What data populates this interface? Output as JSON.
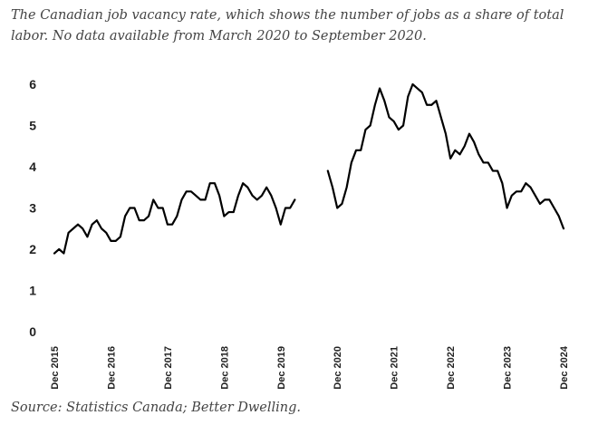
{
  "subtitle": "The Canadian job vacancy rate, which shows the number of jobs as a share of total labor. No data available from March 2020 to September 2020.",
  "source": "Source: Statistics Canada; Better Dwelling.",
  "chart_data": {
    "type": "line",
    "title": "",
    "xlabel": "",
    "ylabel": "",
    "ylim": [
      0,
      6
    ],
    "y_ticks": [
      "0",
      "1",
      "2",
      "3",
      "4",
      "5",
      "6"
    ],
    "x_ticks": [
      "Dec 2015",
      "Dec 2016",
      "Dec 2017",
      "Dec 2018",
      "Dec 2019",
      "Dec 2020",
      "Dec 2021",
      "Dec 2022",
      "Dec 2023",
      "Dec 2024"
    ],
    "grid": false,
    "line_color": "#000000",
    "series": [
      {
        "segments": [
          {
            "start": "Dec 2015",
            "values": [
              1.9,
              2.0,
              1.9,
              2.4,
              2.5,
              2.6,
              2.5,
              2.3,
              2.6,
              2.7,
              2.5,
              2.4,
              2.2,
              2.2,
              2.3,
              2.8,
              3.0,
              3.0,
              2.7,
              2.7,
              2.8,
              3.2,
              3.0,
              3.0,
              2.6,
              2.6,
              2.8,
              3.2,
              3.4,
              3.4,
              3.3,
              3.2,
              3.2,
              3.6,
              3.6,
              3.3,
              2.8,
              2.9,
              2.9,
              3.3,
              3.6,
              3.5,
              3.3,
              3.2,
              3.3,
              3.5,
              3.3,
              3.0,
              2.6,
              3.0,
              3.0,
              3.2
            ]
          },
          {
            "start": "Oct 2020",
            "values": [
              3.9,
              3.5,
              3.0,
              3.1,
              3.5,
              4.1,
              4.4,
              4.4,
              4.9,
              5.0,
              5.5,
              5.9,
              5.6,
              5.2,
              5.1,
              4.9,
              5.0,
              5.7,
              6.0,
              5.9,
              5.8,
              5.5,
              5.5,
              5.6,
              5.2,
              4.8,
              4.2,
              4.4,
              4.3,
              4.5,
              4.8,
              4.6,
              4.3,
              4.1,
              4.1,
              3.9,
              3.9,
              3.6,
              3.0,
              3.3,
              3.4,
              3.4,
              3.6,
              3.5,
              3.3,
              3.1,
              3.2,
              3.2,
              3.0,
              2.8,
              2.5
            ]
          }
        ]
      }
    ]
  }
}
